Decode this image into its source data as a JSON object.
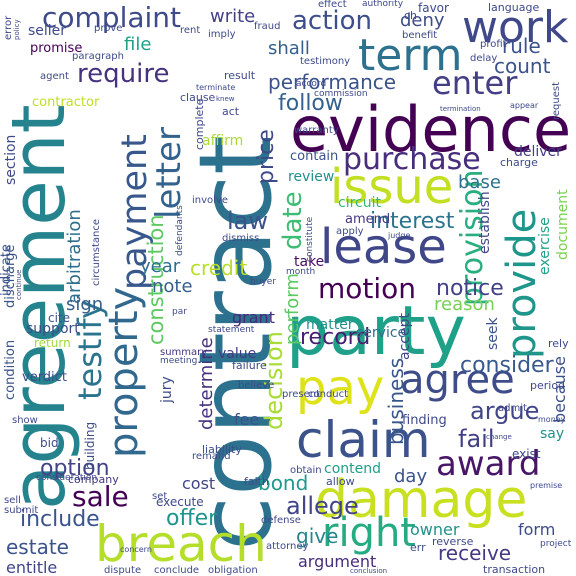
{
  "words": [
    {
      "text": "contract",
      "color": "#2c728e"
    },
    {
      "text": "agreement",
      "color": "#25838e"
    },
    {
      "text": "party",
      "color": "#1fa088"
    },
    {
      "text": "evidence",
      "color": "#440154"
    },
    {
      "text": "damage",
      "color": "#c8e020"
    },
    {
      "text": "breach",
      "color": "#b5de2b"
    },
    {
      "text": "claim",
      "color": "#3b528b"
    },
    {
      "text": "pay",
      "color": "#dde318"
    },
    {
      "text": "lease",
      "color": "#3f4788"
    },
    {
      "text": "issue",
      "color": "#c2df23"
    },
    {
      "text": "property",
      "color": "#31688e"
    },
    {
      "text": "right",
      "color": "#25ab82"
    },
    {
      "text": "award",
      "color": "#481567"
    },
    {
      "text": "agree",
      "color": "#3e4c8a"
    },
    {
      "text": "provide",
      "color": "#1f968b"
    },
    {
      "text": "term",
      "color": "#2d718e"
    },
    {
      "text": "work",
      "color": "#3f4889"
    },
    {
      "text": "purchase",
      "color": "#472d7b"
    },
    {
      "text": "payment",
      "color": "#38588c"
    },
    {
      "text": "letter",
      "color": "#33638d"
    },
    {
      "text": "enter",
      "color": "#433e85"
    },
    {
      "text": "motion",
      "color": "#440154"
    },
    {
      "text": "provision",
      "color": "#29af7f"
    },
    {
      "text": "testify",
      "color": "#2b748e"
    },
    {
      "text": "sale",
      "color": "#440154"
    },
    {
      "text": "complaint",
      "color": "#3e4a89"
    },
    {
      "text": "action",
      "color": "#3d4e8a"
    },
    {
      "text": "require",
      "color": "#46327e"
    },
    {
      "text": "construction",
      "color": "#5ec962"
    },
    {
      "text": "date",
      "color": "#3fbc73"
    },
    {
      "text": "law",
      "color": "#3b528b"
    },
    {
      "text": "interest",
      "color": "#2c738e"
    },
    {
      "text": "fail",
      "color": "#423f85"
    },
    {
      "text": "option",
      "color": "#414487"
    },
    {
      "text": "offer",
      "color": "#20938c"
    },
    {
      "text": "include",
      "color": "#3a548c"
    },
    {
      "text": "estate",
      "color": "#3b528b"
    },
    {
      "text": "receive",
      "color": "#443983"
    },
    {
      "text": "argue",
      "color": "#414487"
    },
    {
      "text": "consider",
      "color": "#38598c"
    },
    {
      "text": "allege",
      "color": "#414487"
    },
    {
      "text": "record",
      "color": "#481f70"
    },
    {
      "text": "perform",
      "color": "#5cc863"
    },
    {
      "text": "notice",
      "color": "#424086"
    },
    {
      "text": "performance",
      "color": "#3b528b"
    },
    {
      "text": "follow",
      "color": "#35608d"
    },
    {
      "text": "determine",
      "color": "#46337f"
    },
    {
      "text": "decision",
      "color": "#a8db34"
    },
    {
      "text": "business",
      "color": "#39568c"
    },
    {
      "text": "entitle",
      "color": "#414487"
    },
    {
      "text": "give",
      "color": "#24868e"
    },
    {
      "text": "bond",
      "color": "#1f9a8a"
    },
    {
      "text": "year",
      "color": "#2d708e"
    },
    {
      "text": "credit",
      "color": "#b8de29"
    },
    {
      "text": "note",
      "color": "#355f8d"
    },
    {
      "text": "price",
      "color": "#3e4989"
    },
    {
      "text": "write",
      "color": "#424086"
    },
    {
      "text": "shall",
      "color": "#35608d"
    },
    {
      "text": "file",
      "color": "#1fa187"
    },
    {
      "text": "rule",
      "color": "#3b528b"
    },
    {
      "text": "count",
      "color": "#3b528b"
    },
    {
      "text": "deny",
      "color": "#3e4c8a"
    },
    {
      "text": "reason",
      "color": "#75d054"
    },
    {
      "text": "arbitration",
      "color": "#2e6e8e"
    },
    {
      "text": "sign",
      "color": "#355e8d"
    },
    {
      "text": "base",
      "color": "#2c728e"
    },
    {
      "text": "day",
      "color": "#3b528b"
    },
    {
      "text": "cost",
      "color": "#404688"
    },
    {
      "text": "contend",
      "color": "#1f9e89"
    },
    {
      "text": "seller",
      "color": "#3e4a89"
    },
    {
      "text": "promise",
      "color": "#440154"
    },
    {
      "text": "contractor",
      "color": "#bddf26"
    },
    {
      "text": "review",
      "color": "#21908d"
    },
    {
      "text": "take",
      "color": "#471063"
    },
    {
      "text": "support",
      "color": "#3e4c8a"
    },
    {
      "text": "service",
      "color": "#2d718e"
    },
    {
      "text": "matter",
      "color": "#20928c"
    },
    {
      "text": "seek",
      "color": "#3a538b"
    },
    {
      "text": "grant",
      "color": "#472a7a"
    },
    {
      "text": "value",
      "color": "#443983"
    },
    {
      "text": "fee",
      "color": "#3b528b"
    },
    {
      "text": "jury",
      "color": "#3d4d8a"
    },
    {
      "text": "because",
      "color": "#3b528b"
    },
    {
      "text": "exercise",
      "color": "#1fa187"
    },
    {
      "text": "document",
      "color": "#7ad151"
    },
    {
      "text": "form",
      "color": "#3e4a89"
    },
    {
      "text": "owner",
      "color": "#21918c"
    },
    {
      "text": "argument",
      "color": "#472c7a"
    },
    {
      "text": "say",
      "color": "#21918c"
    },
    {
      "text": "accept",
      "color": "#3e4a89"
    },
    {
      "text": "establish",
      "color": "#3f4788"
    },
    {
      "text": "amend",
      "color": "#453781"
    },
    {
      "text": "circuit",
      "color": "#35b779"
    },
    {
      "text": "contain",
      "color": "#3b528b"
    },
    {
      "text": "affirm",
      "color": "#a8db34"
    },
    {
      "text": "deliver",
      "color": "#433d84"
    },
    {
      "text": "section",
      "color": "#3e4989"
    },
    {
      "text": "indicate",
      "color": "#3b528b"
    },
    {
      "text": "discharge",
      "color": "#3b528b"
    },
    {
      "text": "condition",
      "color": "#3b528b"
    },
    {
      "text": "verdict",
      "color": "#3e4a89"
    },
    {
      "text": "cite",
      "color": "#3b528b"
    },
    {
      "text": "return",
      "color": "#a0da39"
    },
    {
      "text": "company",
      "color": "#453781"
    },
    {
      "text": "bid",
      "color": "#3e4a89"
    },
    {
      "text": "building",
      "color": "#3e4a89"
    },
    {
      "text": "summary",
      "color": "#453781"
    },
    {
      "text": "meeting",
      "color": "#3e4a89"
    },
    {
      "text": "finding",
      "color": "#3e4a89"
    },
    {
      "text": "reverse",
      "color": "#3e4a89"
    },
    {
      "text": "transaction",
      "color": "#3e4a89"
    },
    {
      "text": "attorney",
      "color": "#3e4a89"
    },
    {
      "text": "dispute",
      "color": "#3e4a89"
    },
    {
      "text": "conclude",
      "color": "#3e4a89"
    },
    {
      "text": "obligation",
      "color": "#3e4a89"
    },
    {
      "text": "execute",
      "color": "#3e4a89"
    },
    {
      "text": "set",
      "color": "#3e4a89"
    },
    {
      "text": "conduct",
      "color": "#3e4a89"
    },
    {
      "text": "present",
      "color": "#3e4a89"
    },
    {
      "text": "obtain",
      "color": "#3e4a89"
    },
    {
      "text": "defense",
      "color": "#3e4a89"
    },
    {
      "text": "faith",
      "color": "#3e4a89"
    },
    {
      "text": "allow",
      "color": "#3e4a89"
    },
    {
      "text": "exist",
      "color": "#3e4a89"
    },
    {
      "text": "period",
      "color": "#3e4a89"
    },
    {
      "text": "rely",
      "color": "#3e4a89"
    },
    {
      "text": "admit",
      "color": "#3e4a89"
    },
    {
      "text": "charge",
      "color": "#3e4a89"
    },
    {
      "text": "warranty",
      "color": "#3e4a89"
    },
    {
      "text": "commission",
      "color": "#3e4a89"
    },
    {
      "text": "accord",
      "color": "#3e4a89"
    },
    {
      "text": "result",
      "color": "#3e4a89"
    },
    {
      "text": "clause",
      "color": "#3e4a89"
    },
    {
      "text": "act",
      "color": "#3e4a89"
    },
    {
      "text": "complete",
      "color": "#3e4a89"
    },
    {
      "text": "imply",
      "color": "#3e4a89"
    },
    {
      "text": "rent",
      "color": "#3e4a89"
    },
    {
      "text": "fraud",
      "color": "#3e4a89"
    },
    {
      "text": "testimony",
      "color": "#3e4a89"
    },
    {
      "text": "benefit",
      "color": "#3e4a89"
    },
    {
      "text": "profit",
      "color": "#3e4a89"
    },
    {
      "text": "delay",
      "color": "#3e4a89"
    },
    {
      "text": "favor",
      "color": "#3e4a89"
    },
    {
      "text": "language",
      "color": "#3e4a89"
    },
    {
      "text": "effect",
      "color": "#3e4a89"
    },
    {
      "text": "authority",
      "color": "#3e4a89"
    },
    {
      "text": "agent",
      "color": "#3e4a89"
    },
    {
      "text": "paragraph",
      "color": "#3e4a89"
    },
    {
      "text": "prove",
      "color": "#3e4a89"
    },
    {
      "text": "error",
      "color": "#3e4a89"
    },
    {
      "text": "policy",
      "color": "#3e4a89"
    },
    {
      "text": "involve",
      "color": "#3e4a89"
    },
    {
      "text": "circumstance",
      "color": "#3e4a89"
    },
    {
      "text": "dismiss",
      "color": "#3e4a89"
    },
    {
      "text": "defendants",
      "color": "#3e4a89"
    },
    {
      "text": "month",
      "color": "#3e4a89"
    },
    {
      "text": "buyer",
      "color": "#3e4a89"
    },
    {
      "text": "failure",
      "color": "#3e4a89"
    },
    {
      "text": "believe",
      "color": "#3e4a89"
    },
    {
      "text": "liability",
      "color": "#3e4a89"
    },
    {
      "text": "remand",
      "color": "#3e4a89"
    },
    {
      "text": "statement",
      "color": "#3e4a89"
    },
    {
      "text": "apply",
      "color": "#3e4a89"
    },
    {
      "text": "judge",
      "color": "#3e4a89"
    },
    {
      "text": "constitute",
      "color": "#3e4a89"
    },
    {
      "text": "request",
      "color": "#3e4a89"
    },
    {
      "text": "project",
      "color": "#3e4a89"
    },
    {
      "text": "premise",
      "color": "#3e4a89"
    },
    {
      "text": "sell",
      "color": "#3e4a89"
    },
    {
      "text": "submit",
      "color": "#3e4a89"
    },
    {
      "text": "consideration",
      "color": "#3e4a89"
    },
    {
      "text": "show",
      "color": "#3e4a89"
    },
    {
      "text": "continue",
      "color": "#3e4a89"
    },
    {
      "text": "conclusion",
      "color": "#3e4a89"
    },
    {
      "text": "concern",
      "color": "#3e4a89"
    },
    {
      "text": "appear",
      "color": "#3e4a89"
    },
    {
      "text": "termination",
      "color": "#3e4a89"
    },
    {
      "text": "terminate",
      "color": "#3e4a89"
    },
    {
      "text": "knew",
      "color": "#3e4a89"
    },
    {
      "text": "err",
      "color": "#3e4a89"
    },
    {
      "text": "par",
      "color": "#3e4a89"
    },
    {
      "text": "money",
      "color": "#3e4a89"
    },
    {
      "text": "change",
      "color": "#3e4a89"
    },
    {
      "text": "ch",
      "color": "#3e4a89"
    }
  ]
}
